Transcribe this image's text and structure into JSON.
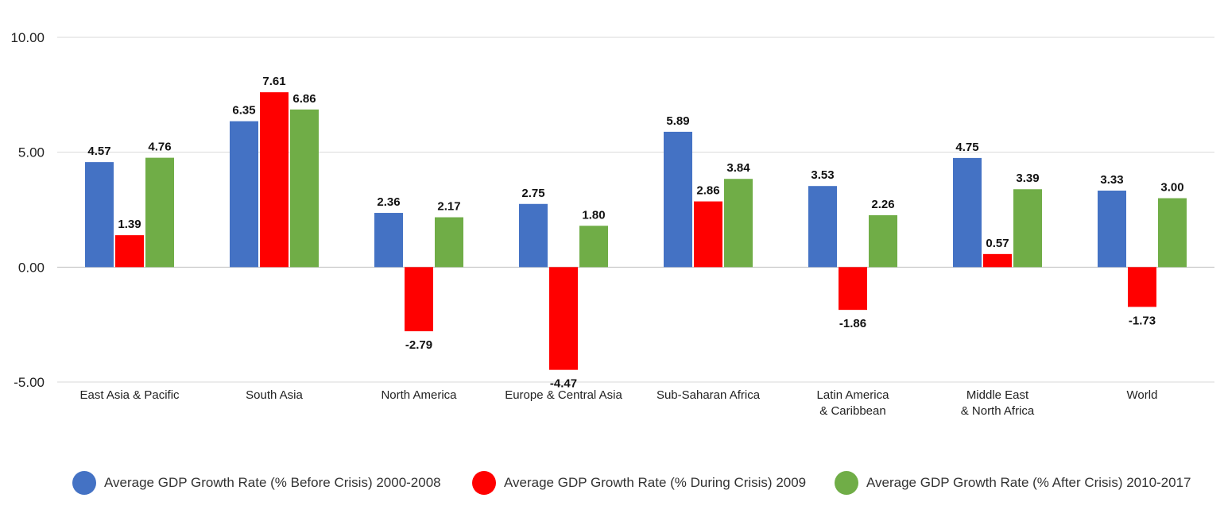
{
  "chart_data": {
    "type": "bar",
    "title": "",
    "xlabel": "",
    "ylabel": "",
    "ylim": [
      -5,
      10
    ],
    "yticks": [
      "10.00",
      "5.00",
      "0.00",
      "-5.00"
    ],
    "ytick_values": [
      10,
      5,
      0,
      -5
    ],
    "categories": [
      [
        "East Asia & Pacific"
      ],
      [
        "South Asia"
      ],
      [
        "North America"
      ],
      [
        "Europe & Central Asia"
      ],
      [
        "Sub-Saharan Africa"
      ],
      [
        "Latin America",
        "& Caribbean"
      ],
      [
        "Middle East",
        "& North Africa"
      ],
      [
        "World"
      ]
    ],
    "series": [
      {
        "name": "Average GDP Growth Rate (% Before Crisis) 2000-2008",
        "color": "#4472c4",
        "values": [
          4.57,
          6.35,
          2.36,
          2.75,
          5.89,
          3.53,
          4.75,
          3.33
        ],
        "labels": [
          "4.57",
          "6.35",
          "2.36",
          "2.75",
          "5.89",
          "3.53",
          "4.75",
          "3.33"
        ]
      },
      {
        "name": "Average GDP Growth Rate (% During Crisis) 2009",
        "color": "#ff0000",
        "values": [
          1.39,
          7.61,
          -2.79,
          -4.47,
          2.86,
          -1.86,
          0.57,
          -1.73
        ],
        "labels": [
          "1.39",
          "7.61",
          "-2.79",
          "-4.47",
          "2.86",
          "-1.86",
          "0.57",
          "-1.73"
        ]
      },
      {
        "name": "Average GDP Growth Rate (% After Crisis) 2010-2017",
        "color": "#70ad47",
        "values": [
          4.76,
          6.86,
          2.17,
          1.8,
          3.84,
          2.26,
          3.39,
          3.0
        ],
        "labels": [
          "4.76",
          "6.86",
          "2.17",
          "1.80",
          "3.84",
          "2.26",
          "3.39",
          "3.00"
        ]
      }
    ],
    "grid": true,
    "legend_position": "bottom"
  }
}
